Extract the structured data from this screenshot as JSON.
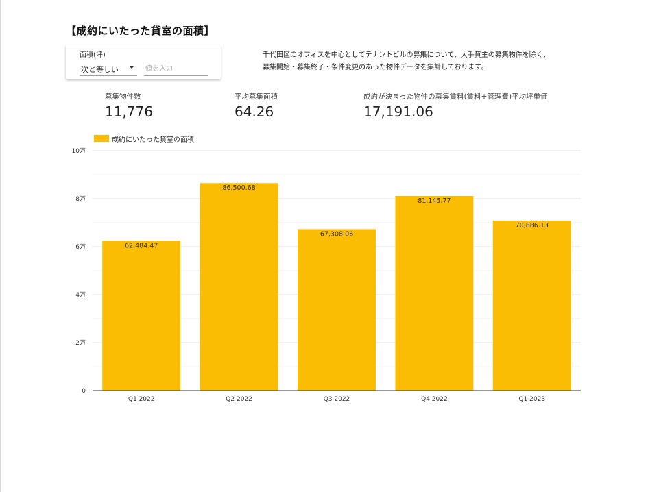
{
  "page": {
    "title": "【成約にいたった貸室の面積】"
  },
  "filter": {
    "label": "面積(坪)",
    "operator": "次と等しい",
    "placeholder": "値を入力"
  },
  "description": {
    "line1": "千代田区のオフィスを中心としてテナントビルの募集について、大手貸主の募集物件を除く、",
    "line2": "募集開始・募集終了・条件変更のあった物件データを集計しております。"
  },
  "scorecards": [
    {
      "label": "募集物件数",
      "value": "11,776"
    },
    {
      "label": "平均募集面積",
      "value": "64.26"
    },
    {
      "label": "成約が決まった物件の募集賃料(賃料+管理費)平均坪単価",
      "value": "17,191.06"
    }
  ],
  "chart_data": {
    "type": "bar",
    "title": "",
    "xlabel": "",
    "ylabel": "",
    "categories": [
      "Q1 2022",
      "Q2 2022",
      "Q3 2022",
      "Q4 2022",
      "Q1 2023"
    ],
    "series": [
      {
        "name": "成約にいたった貸室の面積",
        "values": [
          62484.47,
          86500.68,
          67308.06,
          81145.77,
          70886.13
        ],
        "value_labels": [
          "62,484.47",
          "86,500.68",
          "67,308.06",
          "81,145.77",
          "70,886.13"
        ],
        "color": "#fbbc04"
      }
    ],
    "ylim": [
      0,
      100000
    ],
    "y_ticks": [
      0,
      20000,
      40000,
      60000,
      80000,
      100000
    ],
    "y_tick_labels": [
      "0",
      "2万",
      "4万",
      "6万",
      "8万",
      "10万"
    ],
    "grid": true,
    "legend": "top-left"
  }
}
